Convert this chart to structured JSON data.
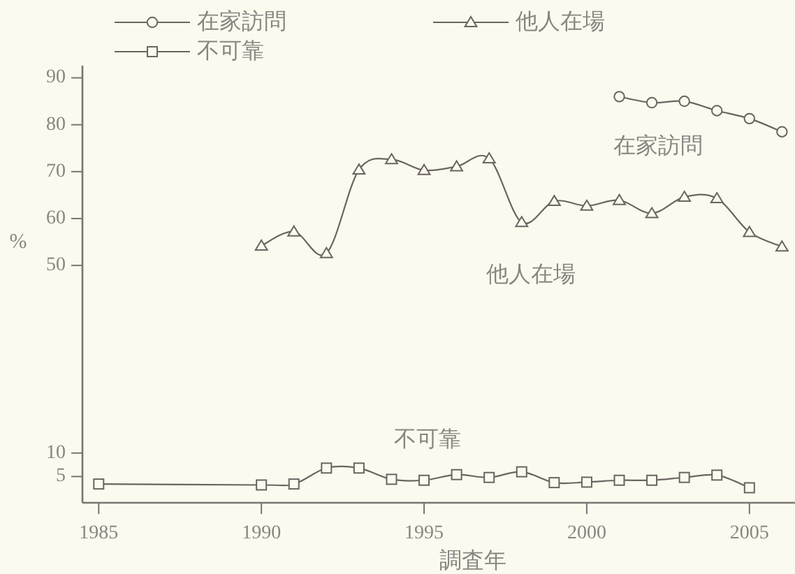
{
  "chart_data": {
    "type": "line",
    "xlabel": "調査年",
    "ylabel": "%",
    "xlim": [
      1984.5,
      2006.4
    ],
    "xticks": [
      1985,
      1990,
      1995,
      2000,
      2005
    ],
    "ylim": [
      -0.6,
      92.6
    ],
    "yticks": [
      5,
      10,
      50,
      60,
      70,
      80,
      90
    ],
    "legend": "top left",
    "grid": false,
    "line_style": "solid",
    "series": [
      {
        "name": "在家訪問",
        "color": "#6b6460",
        "marker": "circle",
        "x": [
          2001,
          2002,
          2003,
          2004,
          2005,
          2006
        ],
        "values": [
          86.0,
          84.7,
          85.0,
          83.0,
          81.3,
          78.5
        ]
      },
      {
        "name": "他人在場",
        "color": "#6b6460",
        "marker": "triangle",
        "x": [
          1990,
          1991,
          1992,
          1993,
          1994,
          1995,
          1996,
          1997,
          1998,
          1999,
          2000,
          2001,
          2002,
          2003,
          2004,
          2005,
          2006
        ],
        "values": [
          54.2,
          57.2,
          52.6,
          70.4,
          72.6,
          70.3,
          71.1,
          72.8,
          59.2,
          63.7,
          62.7,
          63.9,
          61.1,
          64.6,
          64.3,
          57.1,
          54.0
        ]
      },
      {
        "name": "不可靠",
        "color": "#6b6460",
        "marker": "square",
        "x": [
          1985,
          1990,
          1991,
          1992,
          1993,
          1994,
          1995,
          1996,
          1997,
          1998,
          1999,
          2000,
          2001,
          2002,
          2003,
          2004,
          2005
        ],
        "values": [
          3.4,
          3.2,
          3.4,
          6.8,
          6.8,
          4.4,
          4.2,
          5.4,
          4.8,
          6.0,
          3.7,
          3.8,
          4.2,
          4.2,
          4.8,
          5.3,
          2.6
        ]
      }
    ],
    "annotations": [
      "在家訪問",
      "他人在場",
      "不可靠"
    ]
  }
}
